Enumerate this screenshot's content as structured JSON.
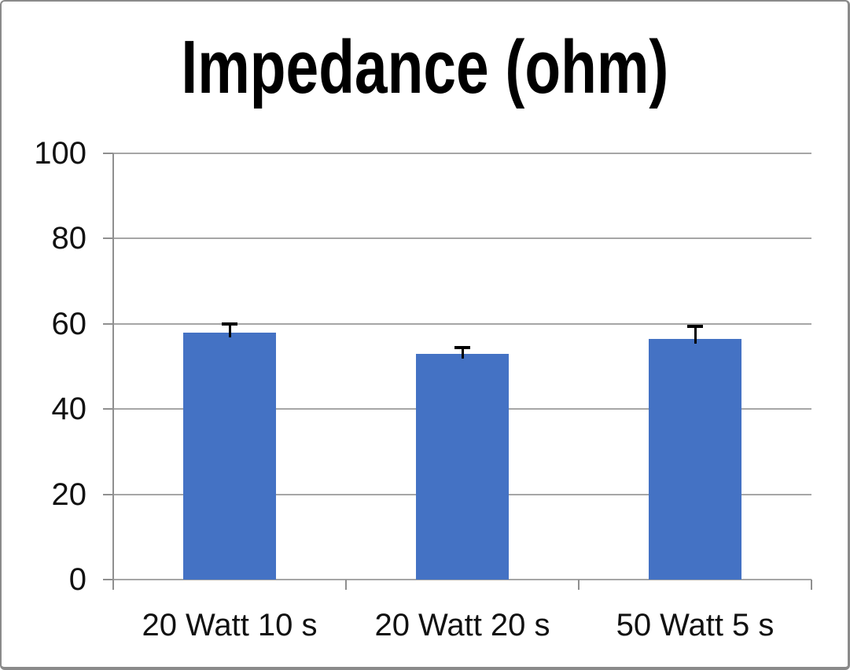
{
  "chart_data": {
    "type": "bar",
    "title": "Impedance (ohm)",
    "categories": [
      "20 Watt 10 s",
      "20 Watt 20 s",
      "50 Watt 5 s"
    ],
    "series": [
      {
        "name": "Impedance",
        "values": [
          58,
          53,
          56.5
        ],
        "errors_plus": [
          2,
          1.5,
          3
        ]
      }
    ],
    "xlabel": "",
    "ylabel": "",
    "ylim": [
      0,
      100
    ],
    "yticks": [
      0,
      20,
      40,
      60,
      80,
      100
    ],
    "grid": true,
    "legend_position": "none",
    "colors": {
      "bar_fill": "#4472C4",
      "gridline": "#a6a6a6",
      "axis": "#8f8f8f",
      "error_bar": "#000000",
      "text": "#111111",
      "frame_border": "#8a8a8a",
      "background": "#ffffff"
    }
  }
}
